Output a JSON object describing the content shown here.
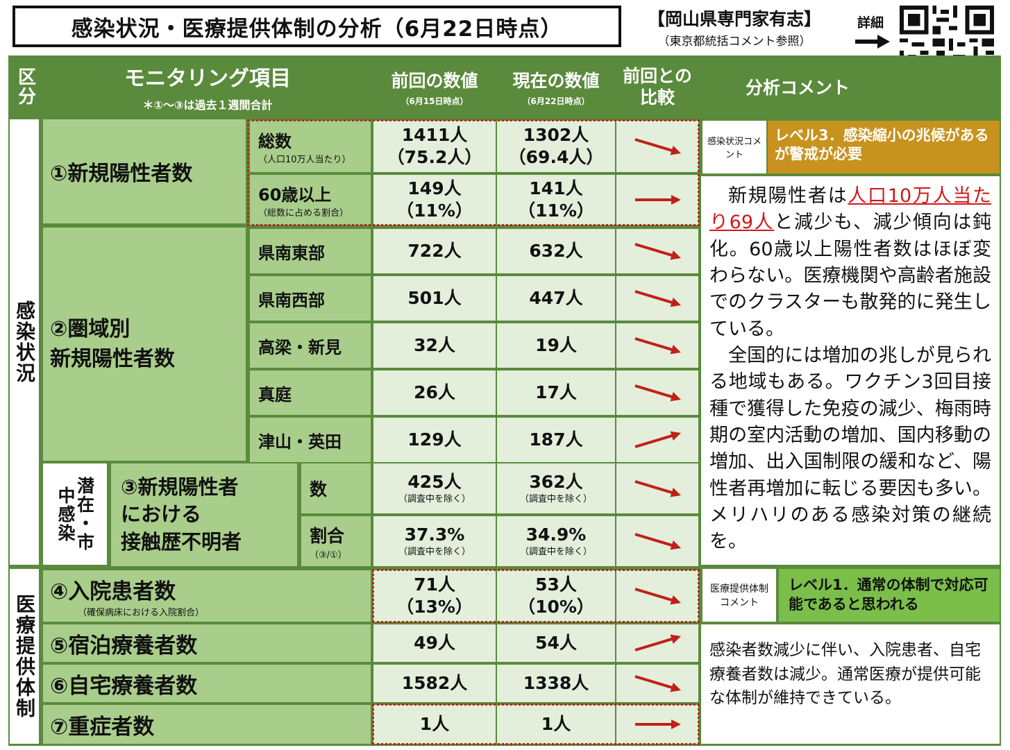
{
  "title": "感染状況・医療提供体制の分析（6月22日時点）",
  "expert": {
    "name": "【岡山県専門家有志】",
    "note": "（東京都統括コメント参照）"
  },
  "detail_label": "詳細",
  "qr_label": "QRコード",
  "header": {
    "kubun": "区分",
    "item": "モニタリング項目",
    "item_note": "＊①～③は過去１週間合計",
    "prev": "前回の数値",
    "prev_date": "（6月15日時点）",
    "curr": "現在の数値",
    "curr_date": "（6月22日時点）",
    "compare": "前回との比較",
    "comment": "分析コメント"
  },
  "sections": {
    "infection": "感染状況",
    "medical": "医療提供体制"
  },
  "rows": {
    "new_pos": {
      "label": "①新規陽性者数",
      "total": {
        "label": "総数",
        "note": "（人口10万人当たり）",
        "prev": "1411人",
        "prev_sub": "（75.2人）",
        "curr": "1302人",
        "curr_sub": "（69.4人）",
        "trend": "down"
      },
      "over60": {
        "label": "60歳以上",
        "note": "（総数に占める割合）",
        "prev": "149人",
        "prev_sub": "（11%）",
        "curr": "141人",
        "curr_sub": "（11%）",
        "trend": "flat"
      }
    },
    "region": {
      "label1": "②圏域別",
      "label2": "新規陽性者数",
      "items": [
        {
          "label": "県南東部",
          "prev": "722人",
          "curr": "632人",
          "trend": "down"
        },
        {
          "label": "県南西部",
          "prev": "501人",
          "curr": "447人",
          "trend": "down"
        },
        {
          "label": "高梁・新見",
          "prev": "32人",
          "curr": "19人",
          "trend": "down"
        },
        {
          "label": "真庭",
          "prev": "26人",
          "curr": "17人",
          "trend": "down"
        },
        {
          "label": "津山・英田",
          "prev": "129人",
          "curr": "187人",
          "trend": "up"
        }
      ]
    },
    "unknown": {
      "side": "潜在・市中感染",
      "label1": "③新規陽性者",
      "label2": "における",
      "label3": "接触歴不明者",
      "count": {
        "label": "数",
        "prev": "425人",
        "prev_sub": "（調査中を除く）",
        "curr": "362人",
        "curr_sub": "（調査中を除く）",
        "trend": "down"
      },
      "ratio": {
        "label": "割合",
        "note": "（③/①）",
        "prev": "37.3%",
        "prev_sub": "（調査中を除く）",
        "curr": "34.9%",
        "curr_sub": "（調査中を除く）",
        "trend": "down"
      }
    },
    "hospital": {
      "label": "④入院患者数",
      "note": "（確保病床における入院割合）",
      "prev": "71人",
      "prev_sub": "（13%）",
      "curr": "53人",
      "curr_sub": "（10%）",
      "trend": "down"
    },
    "hotel": {
      "label": "⑤宿泊療養者数",
      "prev": "49人",
      "curr": "54人",
      "trend": "up"
    },
    "home": {
      "label": "⑥自宅療養者数",
      "prev": "1582人",
      "curr": "1338人",
      "trend": "down"
    },
    "severe": {
      "label": "⑦重症者数",
      "prev": "1人",
      "curr": "1人",
      "trend": "flat"
    }
  },
  "infection_comment": {
    "tag": "感染状況コメント",
    "level": "レベル3．感染縮小の兆候があるが警戒が必要",
    "level_color": "#c8921e",
    "p1_a": "新規陽性者は",
    "p1_u": "人口10万人当たり69人",
    "p1_b": "と減少も、減少傾向は鈍化。60歳以上陽性者数はほぼ変わらない。医療機関や高齢者施設でのクラスターも散発的に発生している。",
    "p2": "全国的には増加の兆しが見られる地域もある。ワクチン3回目接種で獲得した免疫の減少、梅雨時期の室内活動の増加、国内移動の増加、出入国制限の緩和など、陽性者再増加に転じる要因も多い。メリハリのある感染対策の継続を。"
  },
  "medical_comment": {
    "tag": "医療提供体制コメント",
    "level": "レベル1．通常の体制で対応可能であると思われる",
    "level_color": "#7bbf4a",
    "text": "感染者数減少に伴い、入院患者、自宅療養者数は減少。通常医療が提供可能な体制が維持できている。"
  },
  "colors": {
    "header": "#5a8a3c",
    "label": "#a9cd8b",
    "value": "#e3eedb",
    "arrow": "#c0201a"
  }
}
